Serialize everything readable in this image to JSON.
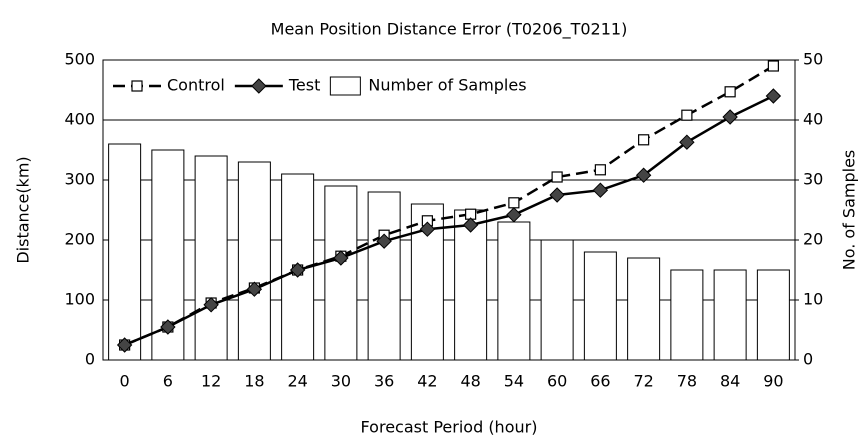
{
  "chart_data": {
    "type": "bar_line",
    "title": "Mean Position Distance Error (T0206_T0211)",
    "x_label": "Forecast Period (hour)",
    "y_label": "Distance(km)",
    "y2_label": "No. of Samples",
    "categories": [
      "0",
      "6",
      "12",
      "18",
      "24",
      "30",
      "36",
      "42",
      "48",
      "54",
      "60",
      "66",
      "72",
      "78",
      "84",
      "90"
    ],
    "series": [
      {
        "name": "Control",
        "kind": "line",
        "color": "#000000",
        "dashed": true,
        "marker": "square",
        "values": [
          25,
          55,
          95,
          120,
          150,
          173,
          208,
          232,
          243,
          262,
          305,
          317,
          367,
          408,
          447,
          490
        ]
      },
      {
        "name": "Test",
        "kind": "line",
        "color": "#000000",
        "dashed": false,
        "marker": "diamond",
        "values": [
          25,
          55,
          92,
          118,
          150,
          170,
          198,
          218,
          225,
          242,
          275,
          283,
          308,
          363,
          405,
          440
        ]
      },
      {
        "name": "Number of Samples",
        "kind": "bar",
        "color": "#ffffff",
        "axis": "y2",
        "values": [
          36,
          35,
          34,
          33,
          31,
          29,
          28,
          26,
          25,
          23,
          20,
          18,
          17,
          15,
          15,
          15
        ]
      }
    ],
    "ylim": [
      0,
      500
    ],
    "yticks": [
      0,
      100,
      200,
      300,
      400,
      500
    ],
    "y2lim": [
      0,
      50
    ],
    "y2ticks": [
      0,
      10,
      20,
      30,
      40,
      50
    ],
    "grid": true,
    "legend": "top-left"
  }
}
